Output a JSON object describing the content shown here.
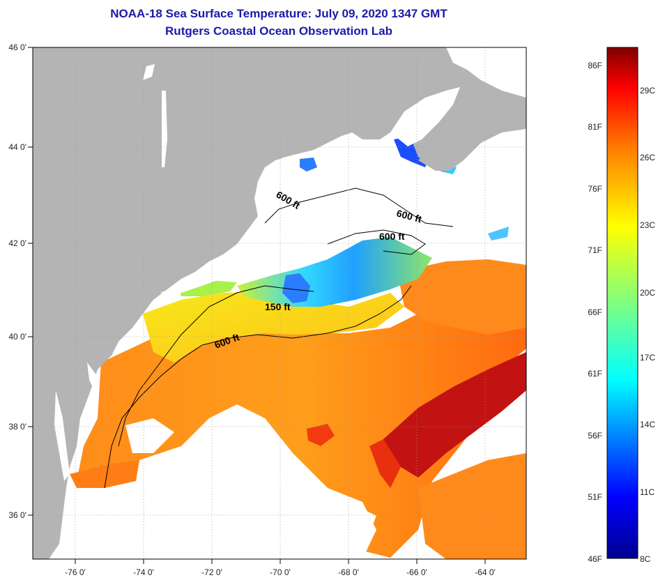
{
  "header": {
    "title": "NOAA-18 Sea Surface Temperature:  July 09, 2020 1347 GMT",
    "subtitle": "Rutgers Coastal Ocean Observation Lab"
  },
  "map": {
    "lat_labels": [
      "46 0'",
      "44 0'",
      "42 0'",
      "40 0'",
      "38 0'",
      "36 0'"
    ],
    "lon_labels": [
      "-76 0'",
      "-74 0'",
      "-72 0'",
      "-70 0'",
      "-68 0'",
      "-66 0'",
      "-64 0'"
    ],
    "contours": [
      {
        "label": "600 ft"
      },
      {
        "label": "600 ft"
      },
      {
        "label": "600 ft"
      },
      {
        "label": "150 ft"
      },
      {
        "label": "600 ft"
      }
    ],
    "colors": {
      "land": "#b4b4b4",
      "cloud": "#ffffff"
    }
  },
  "colorbar": {
    "fahrenheit": [
      "86F",
      "81F",
      "76F",
      "71F",
      "66F",
      "61F",
      "56F",
      "51F",
      "46F"
    ],
    "celsius": [
      "29C",
      "26C",
      "23C",
      "20C",
      "17C",
      "14C",
      "11C",
      "8C"
    ]
  }
}
